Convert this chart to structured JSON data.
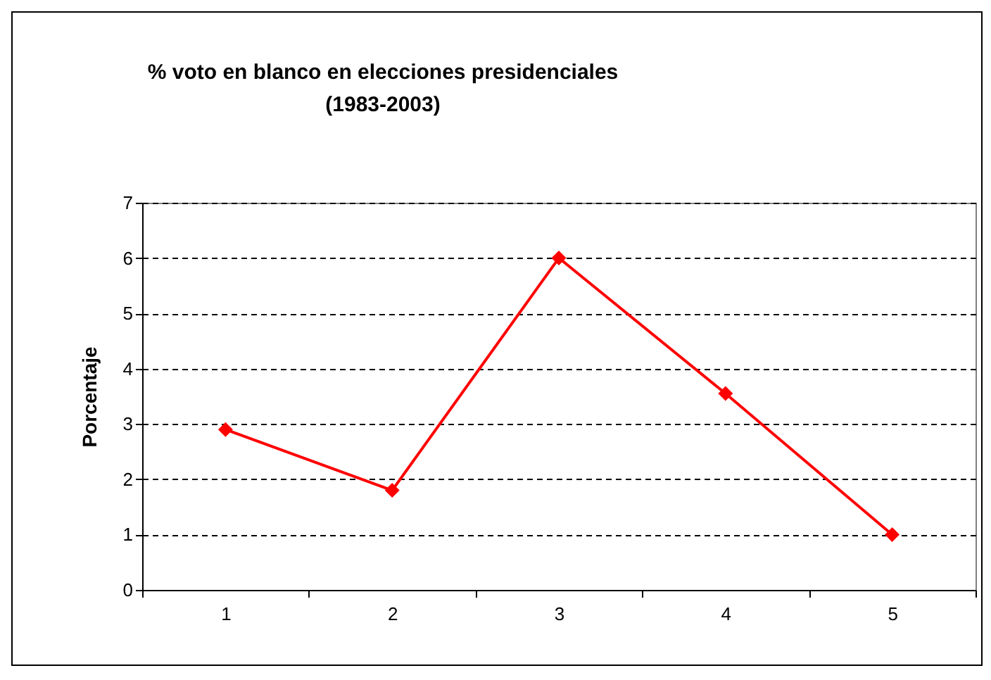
{
  "chart_data": {
    "type": "line",
    "title": "% voto en blanco en elecciones presidenciales",
    "subtitle": "(1983-2003)",
    "ylabel": "Porcentaje",
    "categories": [
      "1",
      "2",
      "3",
      "4",
      "5"
    ],
    "series": [
      {
        "color": "#ff0000",
        "values": [
          2.9,
          1.8,
          6.0,
          3.55,
          1.0
        ]
      }
    ],
    "ylim": [
      0,
      7
    ],
    "yticks": [
      0,
      1,
      2,
      3,
      4,
      5,
      6,
      7
    ],
    "grid": "y",
    "marker": "diamond",
    "line_style": "solid"
  }
}
